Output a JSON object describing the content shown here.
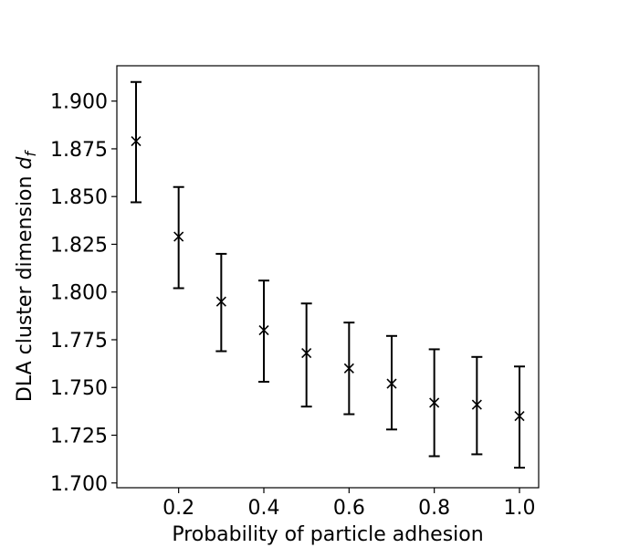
{
  "chart_data": {
    "type": "scatter",
    "xlabel": "Probability of particle adhesion",
    "ylabel_prefix": "DLA cluster dimension ",
    "ylabel_symbol": "d",
    "ylabel_subscript": "f",
    "x_ticks": [
      "0.2",
      "0.4",
      "0.6",
      "0.8",
      "1.0"
    ],
    "x_tick_values": [
      0.2,
      0.4,
      0.6,
      0.8,
      1.0
    ],
    "y_ticks": [
      "1.700",
      "1.725",
      "1.750",
      "1.775",
      "1.800",
      "1.825",
      "1.850",
      "1.875",
      "1.900"
    ],
    "y_tick_values": [
      1.7,
      1.725,
      1.75,
      1.775,
      1.8,
      1.825,
      1.85,
      1.875,
      1.9
    ],
    "xlim": [
      0.055,
      1.045
    ],
    "ylim": [
      1.6975,
      1.9185
    ],
    "grid": false,
    "marker": "x",
    "color": "#000000",
    "points": [
      {
        "x": 0.1,
        "y": 1.879,
        "yerr_low": 1.847,
        "yerr_high": 1.91
      },
      {
        "x": 0.2,
        "y": 1.829,
        "yerr_low": 1.802,
        "yerr_high": 1.855
      },
      {
        "x": 0.3,
        "y": 1.795,
        "yerr_low": 1.769,
        "yerr_high": 1.82
      },
      {
        "x": 0.4,
        "y": 1.78,
        "yerr_low": 1.753,
        "yerr_high": 1.806
      },
      {
        "x": 0.5,
        "y": 1.768,
        "yerr_low": 1.74,
        "yerr_high": 1.794
      },
      {
        "x": 0.6,
        "y": 1.76,
        "yerr_low": 1.736,
        "yerr_high": 1.784
      },
      {
        "x": 0.7,
        "y": 1.752,
        "yerr_low": 1.728,
        "yerr_high": 1.777
      },
      {
        "x": 0.8,
        "y": 1.742,
        "yerr_low": 1.714,
        "yerr_high": 1.77
      },
      {
        "x": 0.9,
        "y": 1.741,
        "yerr_low": 1.715,
        "yerr_high": 1.766
      },
      {
        "x": 1.0,
        "y": 1.735,
        "yerr_low": 1.708,
        "yerr_high": 1.761
      }
    ]
  }
}
